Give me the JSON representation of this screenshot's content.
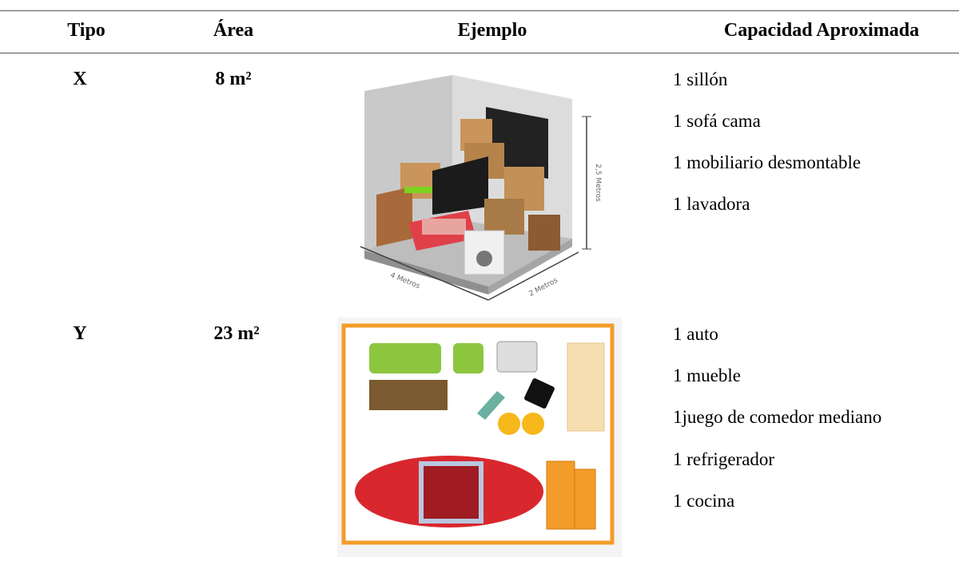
{
  "table": {
    "headers": [
      "Tipo",
      "Área",
      "Ejemplo",
      "Capacidad Aproximada"
    ],
    "rows": [
      {
        "tipo": "X",
        "area": "8 m²",
        "image_labels": [
          "2,5 Metros",
          "4 Metros",
          "2 Metros"
        ],
        "capacidad": [
          "1 sillón",
          "1 sofá cama",
          "1 mobiliario desmontable",
          "1 lavadora"
        ]
      },
      {
        "tipo": "Y",
        "area": "23 m²",
        "capacidad": [
          "1 auto",
          "1 mueble",
          "1juego de comedor mediano",
          "1 refrigerador",
          "1 cocina"
        ]
      }
    ]
  }
}
